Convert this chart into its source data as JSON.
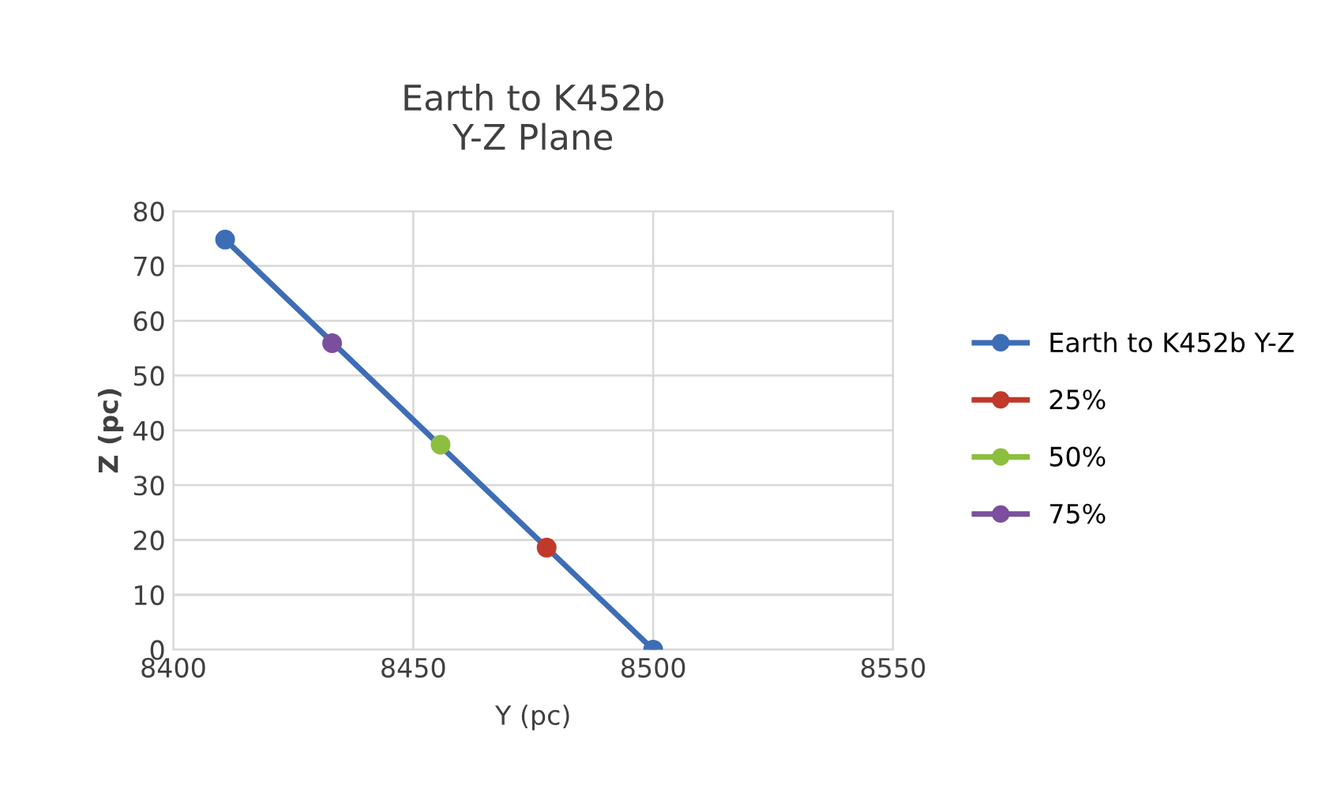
{
  "chart_data": {
    "type": "line",
    "title": "Earth to K452b\nY-Z Plane",
    "xlabel": "Y (pc)",
    "ylabel": "Z (pc)",
    "series": [
      {
        "name": "Earth to K452b Y-Z",
        "color": "#3d6db5",
        "x": [
          8410.8,
          8500
        ],
        "values": [
          74.8,
          0
        ]
      },
      {
        "name": "25%",
        "color": "#c0392b",
        "x": [
          8477.8
        ],
        "values": [
          18.6
        ]
      },
      {
        "name": "50%",
        "color": "#8cbf3f",
        "x": [
          8455.7
        ],
        "values": [
          37.4
        ]
      },
      {
        "name": "75%",
        "color": "#7b4f9e",
        "x": [
          8433.1
        ],
        "values": [
          55.9
        ]
      }
    ],
    "xlim": [
      8400,
      8550
    ],
    "xticks": [
      8400,
      8450,
      8500,
      8550
    ],
    "ylim": [
      0,
      80
    ],
    "yticks": [
      0,
      10,
      20,
      30,
      40,
      50,
      60,
      70,
      80
    ],
    "grid": true,
    "legend": "right",
    "marker": "circle",
    "line_style": "solid"
  }
}
